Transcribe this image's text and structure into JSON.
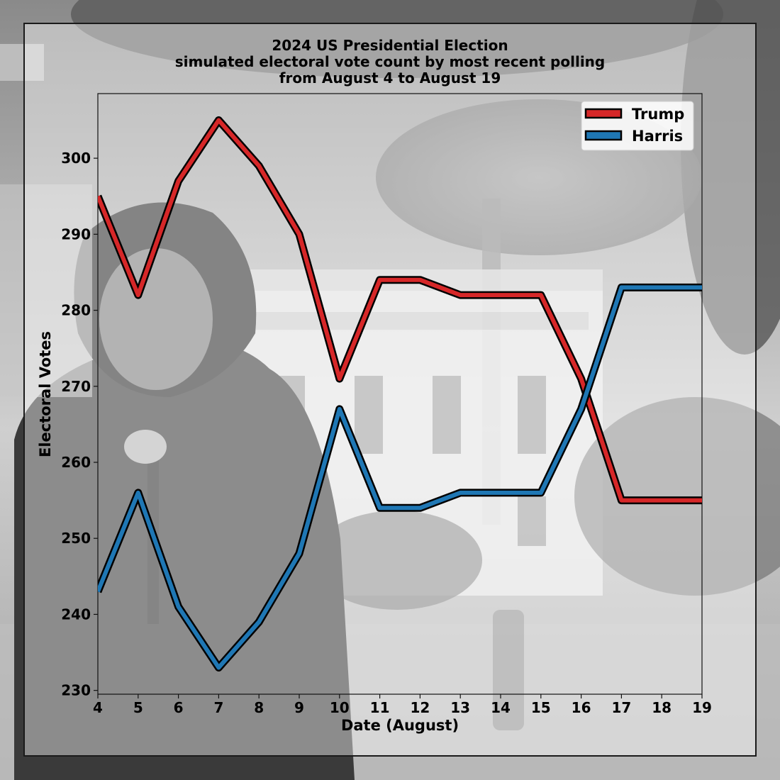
{
  "chart_data": {
    "type": "line",
    "title": [
      "2024 US Presidential Election",
      "simulated electoral vote count by most recent polling",
      "from August 4 to August 19"
    ],
    "xlabel": "Date (August)",
    "ylabel": "Electoral Votes",
    "x": [
      4,
      5,
      6,
      7,
      8,
      9,
      10,
      11,
      12,
      13,
      14,
      15,
      16,
      17,
      18,
      19
    ],
    "xlim": [
      4,
      19
    ],
    "ylim": [
      229.5,
      308.5
    ],
    "yticks": [
      230,
      240,
      250,
      260,
      270,
      280,
      290,
      300
    ],
    "grid": false,
    "legend_position": "top-right",
    "series": [
      {
        "name": "Trump",
        "color": "#d62728",
        "values": [
          295,
          282,
          297,
          305,
          299,
          290,
          271,
          284,
          284,
          282,
          282,
          282,
          271,
          255,
          255,
          255
        ]
      },
      {
        "name": "Harris",
        "color": "#1f77b4",
        "values": [
          243,
          256,
          241,
          233,
          239,
          248,
          267,
          254,
          254,
          256,
          256,
          256,
          267,
          283,
          283,
          283
        ]
      }
    ]
  }
}
